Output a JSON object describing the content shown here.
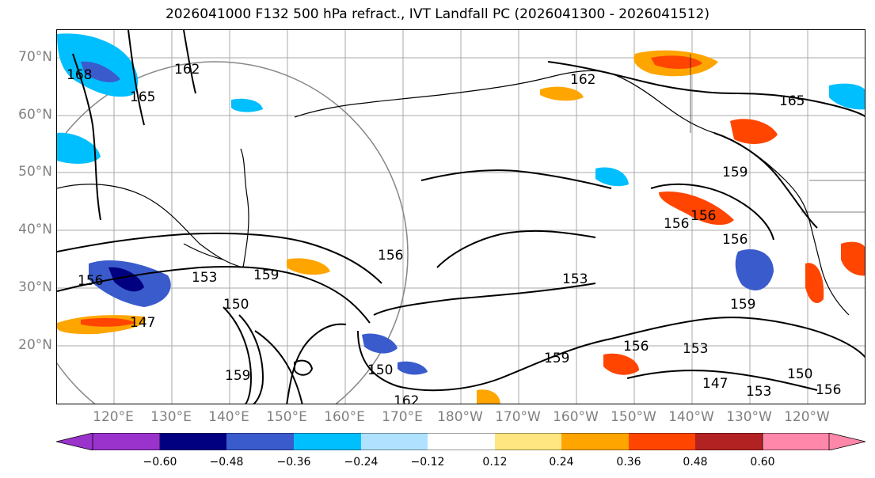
{
  "title": "2026041000 F132 500 hPa refract., IVT Landfall PC (2026041300 - 2026041512)",
  "lat_labels": [
    "70°N",
    "60°N",
    "50°N",
    "40°N",
    "30°N",
    "20°N"
  ],
  "lon_labels": [
    "120°E",
    "130°E",
    "140°E",
    "150°E",
    "160°E",
    "170°E",
    "180°W",
    "170°W",
    "160°W",
    "150°W",
    "140°W",
    "130°W",
    "120°W"
  ],
  "colorbar": {
    "colors": [
      "#9933cc",
      "#000080",
      "#3a5bcc",
      "#00bfff",
      "#b0e2ff",
      "#ffffff",
      "#ffe680",
      "#ffa500",
      "#ff4500",
      "#b22222",
      "#ff88aa"
    ],
    "tick_labels": [
      "−0.60",
      "−0.48",
      "−0.36",
      "−0.24",
      "−0.12",
      "0.12",
      "0.24",
      "0.36",
      "0.48",
      "0.60"
    ]
  },
  "contour_labels": [
    "168",
    "165",
    "162",
    "165",
    "162",
    "159",
    "156",
    "156",
    "159",
    "156",
    "153",
    "150",
    "147",
    "156",
    "159",
    "150",
    "162",
    "153",
    "159",
    "156",
    "153",
    "159",
    "147",
    "153",
    "150",
    "156",
    "156"
  ]
}
